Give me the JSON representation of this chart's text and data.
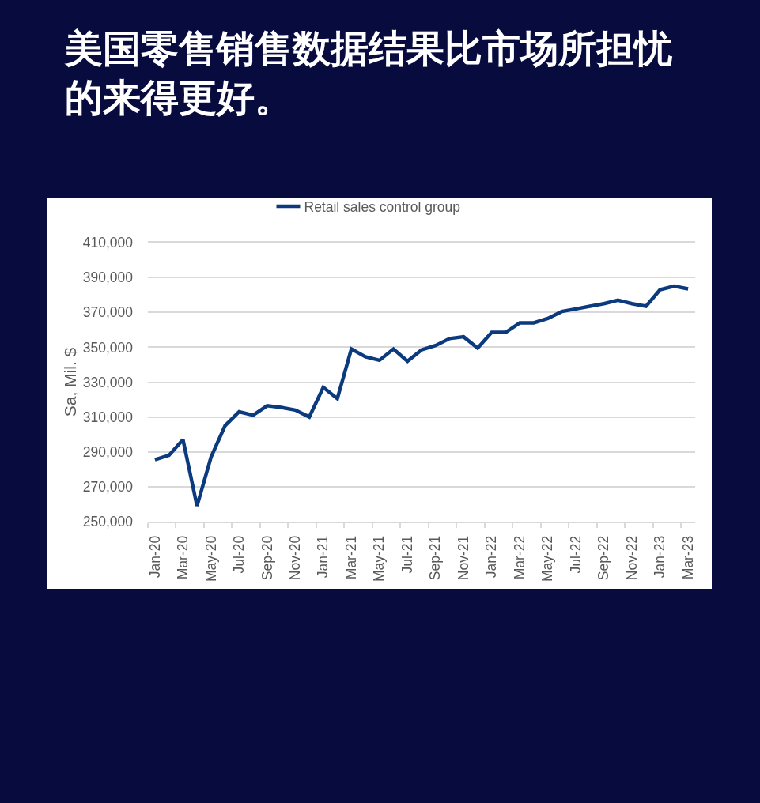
{
  "chart_data": {
    "type": "line",
    "title": "美国零售销售数据结果比市场所担忧的来得更好。",
    "ylabel": "Sa, Mil. $",
    "categories": [
      "Jan-20",
      null,
      "Mar-20",
      null,
      "May-20",
      null,
      "Jul-20",
      null,
      "Sep-20",
      null,
      "Nov-20",
      null,
      "Jan-21",
      null,
      "Mar-21",
      null,
      "May-21",
      null,
      "Jul-21",
      null,
      "Sep-21",
      null,
      "Nov-21",
      null,
      "Jan-22",
      null,
      "Mar-22",
      null,
      "May-22",
      null,
      "Jul-22",
      null,
      "Sep-22",
      null,
      "Nov-22",
      null,
      "Jan-23",
      null,
      "Mar-23"
    ],
    "series": [
      {
        "name": "Retail sales control group",
        "color": "#0b3a7e",
        "values": [
          285500,
          288000,
          297000,
          259000,
          287000,
          305000,
          313000,
          311000,
          316500,
          315500,
          314000,
          310000,
          327000,
          320500,
          349000,
          344500,
          342500,
          349000,
          342000,
          348500,
          351000,
          355000,
          356000,
          349500,
          358500,
          358500,
          364000,
          364000,
          366500,
          370500,
          372000,
          373500,
          375000,
          377000,
          375000,
          373500,
          383000,
          385000,
          383500
        ]
      }
    ],
    "ylim": [
      250000,
      410000
    ],
    "yticks": [
      {
        "value": 250000,
        "label": "250,000"
      },
      {
        "value": 270000,
        "label": "270,000"
      },
      {
        "value": 290000,
        "label": "290,000"
      },
      {
        "value": 310000,
        "label": "310,000"
      },
      {
        "value": 330000,
        "label": "330,000"
      },
      {
        "value": 350000,
        "label": "350,000"
      },
      {
        "value": 370000,
        "label": "370,000"
      },
      {
        "value": 390000,
        "label": "390,000"
      },
      {
        "value": 410000,
        "label": "410,000"
      }
    ],
    "grid": "y",
    "legend": "top",
    "line_style": "solid"
  }
}
